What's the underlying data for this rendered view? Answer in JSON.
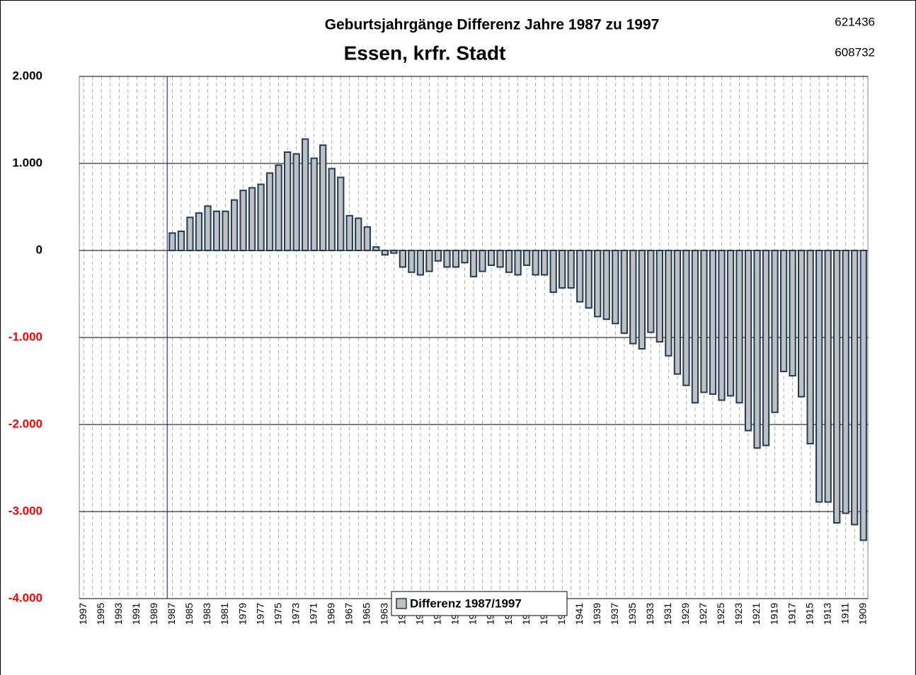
{
  "chart_data": {
    "type": "bar",
    "title": "Geburtsjahrgänge Differenz Jahre 1987 zu 1997",
    "subtitle": "Essen, krfr. Stadt",
    "annotations": [
      "621436",
      "608732"
    ],
    "categories": [
      "1997",
      null,
      "1995",
      null,
      "1993",
      null,
      "1991",
      null,
      "1989",
      null,
      "1987",
      null,
      "1985",
      null,
      "1983",
      null,
      "1981",
      null,
      "1979",
      null,
      "1977",
      null,
      "1975",
      null,
      "1973",
      null,
      "1971",
      null,
      "1969",
      null,
      "1967",
      null,
      "1965",
      null,
      "1963",
      null,
      "1961",
      null,
      "1959",
      null,
      "1957",
      null,
      "1955",
      null,
      "1953",
      null,
      "1951",
      null,
      "1949",
      null,
      "1947",
      null,
      "1945",
      null,
      "1943",
      null,
      "1941",
      null,
      "1939",
      null,
      "1937",
      null,
      "1935",
      null,
      "1933",
      null,
      "1931",
      null,
      "1929",
      null,
      "1927",
      null,
      "1925",
      null,
      "1923",
      null,
      "1921",
      null,
      "1919",
      null,
      "1917",
      null,
      "1915",
      null,
      "1913",
      null,
      "1911",
      null,
      "1909"
    ],
    "series": [
      {
        "name": "Differenz 1987/1997",
        "color": "#c0c0c0",
        "edge_color": "#1f3b5a",
        "values": [
          0,
          0,
          0,
          0,
          0,
          0,
          0,
          0,
          0,
          0,
          200,
          220,
          380,
          430,
          510,
          450,
          450,
          580,
          690,
          720,
          760,
          890,
          980,
          1130,
          1110,
          1280,
          1060,
          1210,
          940,
          840,
          400,
          370,
          270,
          40,
          -50,
          -30,
          -190,
          -250,
          -280,
          -240,
          -120,
          -190,
          -190,
          -140,
          -300,
          -240,
          -170,
          -190,
          -250,
          -280,
          -170,
          -280,
          -280,
          -480,
          -430,
          -430,
          -590,
          -660,
          -760,
          -790,
          -840,
          -950,
          -1070,
          -1130,
          -940,
          -1050,
          -1210,
          -1420,
          -1550,
          -1750,
          -1630,
          -1650,
          -1720,
          -1670,
          -1750,
          -2070,
          -2270,
          -2240,
          -1860,
          -1390,
          -1440,
          -1680,
          -2220,
          -2890,
          -2890,
          -3130,
          -3020,
          -3150,
          -3330
        ]
      }
    ],
    "ylim": [
      -4000,
      2000
    ],
    "yticks": [
      {
        "value": 2000,
        "label": "2.000"
      },
      {
        "value": 1000,
        "label": "1.000"
      },
      0,
      {
        "value": -1000,
        "label": "-1.000"
      },
      {
        "value": -2000,
        "label": "-2.000"
      },
      {
        "value": -3000,
        "label": "-3.000"
      },
      {
        "value": -4000,
        "label": "-4.000"
      }
    ],
    "tick_label_color": "#000000",
    "negative_tick_label_color": "#ff0000",
    "grid": true,
    "legend": "bottom"
  }
}
